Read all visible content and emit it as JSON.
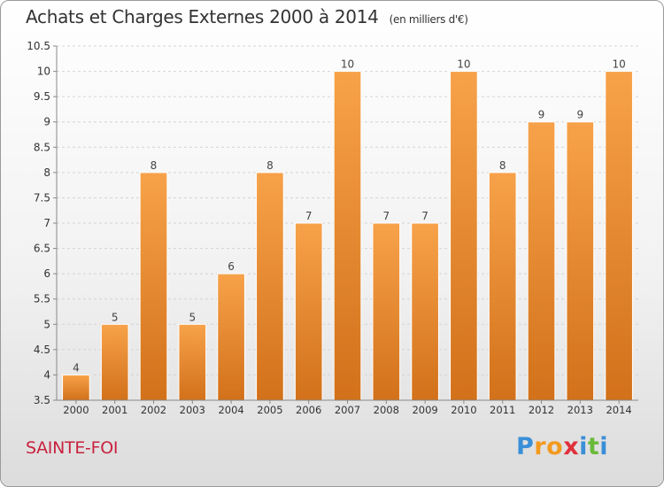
{
  "chart_data": {
    "type": "bar",
    "title": "Achats et Charges Externes 2000 à 2014",
    "unit": "(en milliers d'€)",
    "categories": [
      "2000",
      "2001",
      "2002",
      "2003",
      "2004",
      "2005",
      "2006",
      "2007",
      "2008",
      "2009",
      "2010",
      "2011",
      "2012",
      "2013",
      "2014"
    ],
    "values": [
      4,
      5,
      8,
      5,
      6,
      8,
      7,
      10,
      7,
      7,
      10,
      8,
      9,
      9,
      10
    ],
    "ylim": [
      3.5,
      10.5
    ],
    "yticks": [
      "3.5",
      "4",
      "4.5",
      "5",
      "5.5",
      "6",
      "6.5",
      "7",
      "7.5",
      "8",
      "8.5",
      "9",
      "9.5",
      "10",
      "10.5"
    ],
    "grid": true,
    "bar_color_top": "#f7a24a",
    "bar_color_bottom": "#d2711a"
  },
  "location": "SAINTE-FOI",
  "brand": {
    "letters": [
      "P",
      "r",
      "o",
      "x",
      "i",
      "t",
      "i"
    ],
    "colors": [
      "#3a8fd8",
      "#f39a1f",
      "#f39a1f",
      "#e0303c",
      "#3a8fd8",
      "#6aba3a",
      "#3a8fd8"
    ]
  }
}
